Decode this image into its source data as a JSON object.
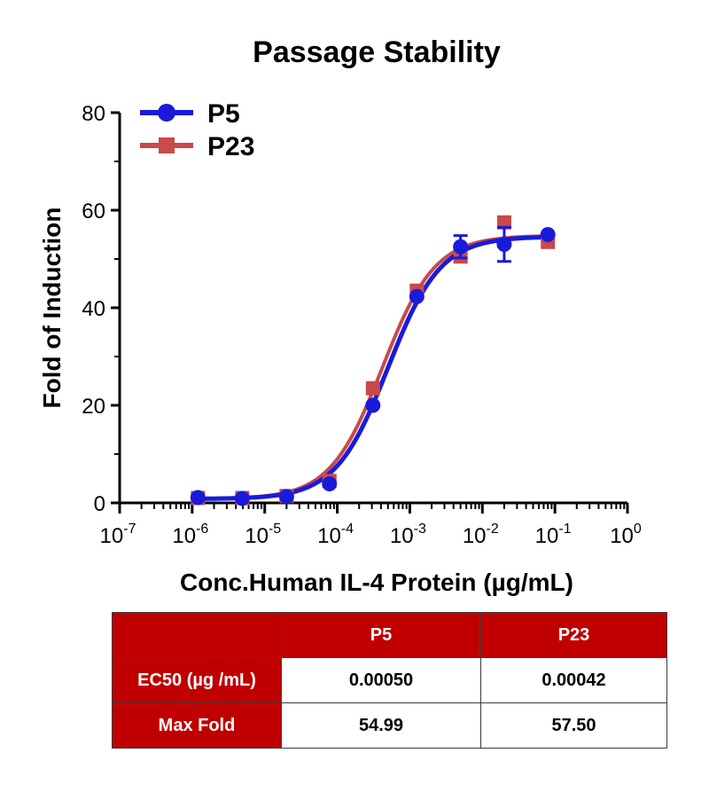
{
  "colors": {
    "p5": "#1a1adb",
    "p23": "#c84a4a",
    "table_header": "#c00000"
  },
  "chart_data": {
    "type": "line",
    "title": "Passage Stability",
    "xlabel": "Conc.Human IL-4 Protein (µg/mL)",
    "ylabel": "Fold of Induction",
    "x_scale": "log",
    "xlim": [
      1e-07,
      1
    ],
    "ylim": [
      0,
      80
    ],
    "x_ticks": [
      {
        "base": "10",
        "exp": "-7"
      },
      {
        "base": "10",
        "exp": "-6"
      },
      {
        "base": "10",
        "exp": "-5"
      },
      {
        "base": "10",
        "exp": "-4"
      },
      {
        "base": "10",
        "exp": "-3"
      },
      {
        "base": "10",
        "exp": "-2"
      },
      {
        "base": "10",
        "exp": "-1"
      },
      {
        "base": "10",
        "exp": "0"
      }
    ],
    "y_ticks": [
      "0",
      "20",
      "40",
      "60",
      "80"
    ],
    "legend_position": "top-left",
    "series": [
      {
        "name": "P5",
        "marker": "circle",
        "x": [
          1.2e-06,
          4.9e-06,
          2e-05,
          7.8e-05,
          0.00031,
          0.00125,
          0.005,
          0.02,
          0.08
        ],
        "y": [
          1.1,
          0.9,
          1.3,
          3.9,
          20.0,
          42.3,
          52.5,
          53.0,
          55.0
        ],
        "error": [
          0,
          0,
          0,
          0,
          0,
          0,
          2.3,
          3.5,
          0
        ],
        "fit": {
          "bottom": 0.8,
          "top": 54.6,
          "ec50": 0.0005,
          "hill": 1.2
        }
      },
      {
        "name": "P23",
        "marker": "square",
        "x": [
          1.2e-06,
          4.9e-06,
          2e-05,
          7.8e-05,
          0.00031,
          0.00125,
          0.005,
          0.02,
          0.08
        ],
        "y": [
          1.0,
          1.0,
          1.4,
          4.5,
          23.5,
          43.5,
          50.5,
          57.5,
          53.5
        ],
        "error": [
          0,
          0,
          0,
          0,
          0,
          0,
          0,
          0,
          0
        ],
        "fit": {
          "bottom": 0.8,
          "top": 54.8,
          "ec50": 0.00042,
          "hill": 1.2
        }
      }
    ]
  },
  "table": {
    "header": [
      "",
      "P5",
      "P23"
    ],
    "rows": [
      {
        "label": "EC50 (µg /mL)",
        "p5": "0.00050",
        "p23": "0.00042"
      },
      {
        "label": "Max Fold",
        "p5": "54.99",
        "p23": "57.50"
      }
    ]
  }
}
